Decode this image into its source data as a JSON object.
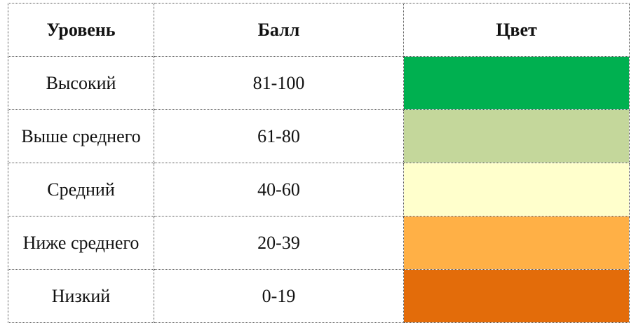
{
  "table": {
    "headers": {
      "level": "Уровень",
      "score": "Балл",
      "color": "Цвет"
    },
    "rows": [
      {
        "level": "Высокий",
        "score": "81-100",
        "color": "#00B050"
      },
      {
        "level": "Выше среднего",
        "score": "61-80",
        "color": "#C4D79B"
      },
      {
        "level": "Средний",
        "score": "40-60",
        "color": "#FFFFCC"
      },
      {
        "level": "Ниже среднего",
        "score": "20-39",
        "color": "#FFB046"
      },
      {
        "level": "Низкий",
        "score": "0-19",
        "color": "#E36C0A"
      }
    ]
  }
}
